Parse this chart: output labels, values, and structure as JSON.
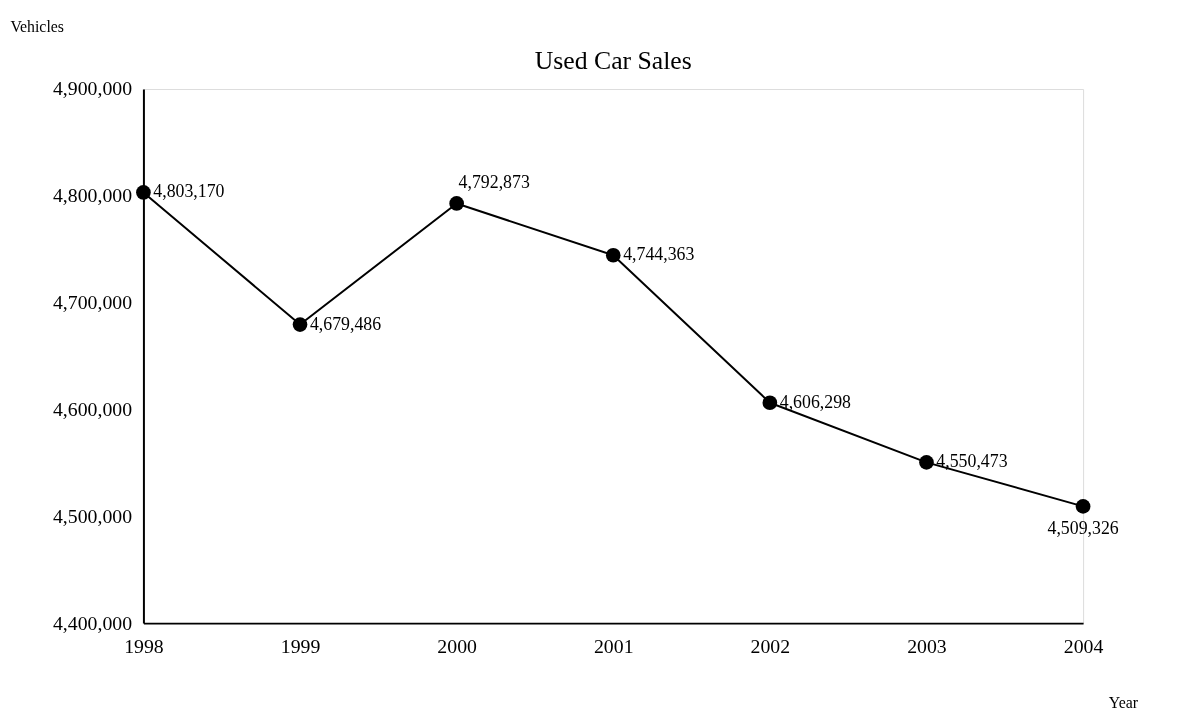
{
  "chart_data": {
    "type": "line",
    "title": "Used Car Sales",
    "xlabel": "Year",
    "ylabel": "Vehicles",
    "categories": [
      "1998",
      "1999",
      "2000",
      "2001",
      "2002",
      "2003",
      "2004"
    ],
    "series": [
      {
        "color": "#000000",
        "values": [
          4803170,
          4679486,
          4792873,
          4744363,
          4606298,
          4550473,
          4509326
        ],
        "value_labels": [
          "4,803,170",
          "4,679,486",
          "4,792,873",
          "4,744,363",
          "4,606,298",
          "4,550,473",
          "4,509,326"
        ]
      }
    ],
    "ylim": [
      4400000,
      4900000
    ],
    "yticks": [
      {
        "value": 4400000,
        "label": "4,400,000"
      },
      {
        "value": 4500000,
        "label": "4,500,000"
      },
      {
        "value": 4600000,
        "label": "4,600,000"
      },
      {
        "value": 4700000,
        "label": "4,700,000"
      },
      {
        "value": 4800000,
        "label": "4,800,000"
      },
      {
        "value": 4900000,
        "label": "4,900,000"
      }
    ],
    "marker": "circle",
    "line_style": "solid",
    "grid": false
  }
}
